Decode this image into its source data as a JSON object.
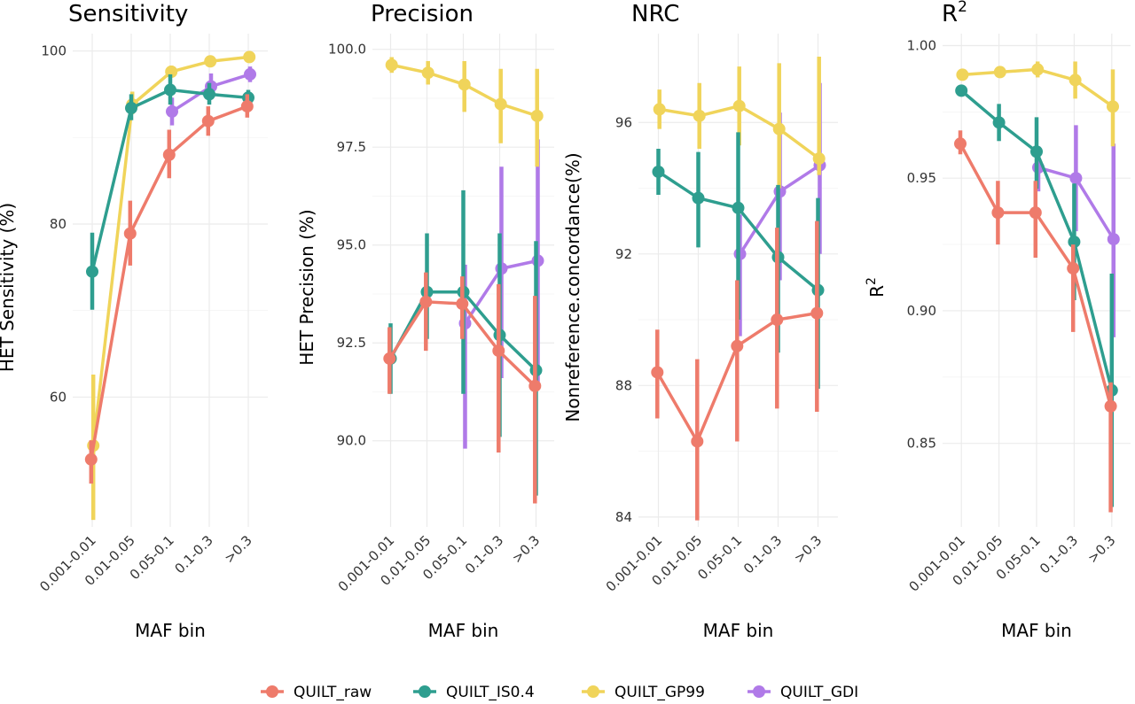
{
  "chart_data": [
    {
      "type": "line",
      "title": "Sensitivity",
      "title_sup": "",
      "ylabel": "HET Sensitivity (%)",
      "ylabel_sup": "",
      "xlabel": "MAF bin",
      "categories": [
        "0.001-0.01",
        "0.01-0.05",
        "0.05-0.1",
        "0.1-0.3",
        ">0.3"
      ],
      "ylim": [
        45,
        102
      ],
      "yticks": [
        60,
        80,
        100
      ],
      "ytick_labels": [
        "60",
        "80",
        "100"
      ],
      "series": [
        {
          "name": "QUILT_raw",
          "values": [
            52.8,
            78.9,
            88.0,
            91.9,
            93.6
          ],
          "lo": [
            50.0,
            75.2,
            85.3,
            90.2,
            92.3
          ],
          "hi": [
            55.0,
            82.7,
            90.9,
            93.6,
            95.0
          ]
        },
        {
          "name": "QUILT_IS0.4",
          "values": [
            74.5,
            93.4,
            95.5,
            95.0,
            94.6
          ],
          "lo": [
            70.1,
            92.0,
            93.8,
            93.8,
            93.7
          ],
          "hi": [
            79.0,
            95.0,
            97.3,
            96.3,
            95.5
          ]
        },
        {
          "name": "QUILT_GP99",
          "values": [
            54.4,
            93.8,
            97.6,
            98.8,
            99.3
          ],
          "lo": [
            45.8,
            92.7,
            97.0,
            98.2,
            98.7
          ],
          "hi": [
            62.6,
            95.3,
            98.3,
            99.4,
            99.8
          ]
        },
        {
          "name": "QUILT_GDI",
          "values": [
            null,
            null,
            93.0,
            95.9,
            97.3
          ],
          "lo": [
            null,
            null,
            91.4,
            94.6,
            96.4
          ],
          "hi": [
            null,
            null,
            94.6,
            97.4,
            98.2
          ]
        }
      ]
    },
    {
      "type": "line",
      "title": "Precision",
      "title_sup": "",
      "ylabel": "HET Precision (%)",
      "ylabel_sup": "",
      "xlabel": "MAF bin",
      "categories": [
        "0.001-0.01",
        "0.01-0.05",
        "0.05-0.1",
        "0.1-0.3",
        ">0.3"
      ],
      "ylim": [
        87.8,
        100.4
      ],
      "yticks": [
        90.0,
        92.5,
        95.0,
        97.5,
        100.0
      ],
      "ytick_labels": [
        "90.0",
        "92.5",
        "95.0",
        "97.5",
        "100.0"
      ],
      "series": [
        {
          "name": "QUILT_raw",
          "values": [
            92.1,
            93.55,
            93.5,
            92.3,
            91.4
          ],
          "lo": [
            91.2,
            92.3,
            92.6,
            89.7,
            88.4
          ],
          "hi": [
            92.9,
            94.3,
            94.2,
            94.0,
            93.7
          ]
        },
        {
          "name": "QUILT_IS0.4",
          "values": [
            92.1,
            93.8,
            93.8,
            92.7,
            91.8
          ],
          "lo": [
            91.2,
            92.6,
            91.2,
            90.1,
            88.6
          ],
          "hi": [
            93.0,
            95.3,
            96.4,
            95.3,
            95.1
          ]
        },
        {
          "name": "QUILT_GP99",
          "values": [
            99.6,
            99.4,
            99.1,
            98.6,
            98.3
          ],
          "lo": [
            99.4,
            99.1,
            98.4,
            97.6,
            97.0
          ],
          "hi": [
            99.8,
            99.7,
            99.7,
            99.5,
            99.5
          ]
        },
        {
          "name": "QUILT_GDI",
          "values": [
            null,
            null,
            93.0,
            94.4,
            94.6
          ],
          "lo": [
            null,
            null,
            89.8,
            91.6,
            91.5
          ],
          "hi": [
            null,
            null,
            94.5,
            97.0,
            97.7
          ]
        }
      ]
    },
    {
      "type": "line",
      "title": "NRC",
      "title_sup": "",
      "ylabel": "Nonreference.concordance(%)",
      "ylabel_sup": "",
      "xlabel": "MAF bin",
      "categories": [
        "0.001-0.01",
        "0.01-0.05",
        "0.05-0.1",
        "0.1-0.3",
        ">0.3"
      ],
      "ylim": [
        83.7,
        98.7
      ],
      "yticks": [
        84,
        88,
        92,
        96
      ],
      "ytick_labels": [
        "84",
        "88",
        "92",
        "96"
      ],
      "series": [
        {
          "name": "QUILT_raw",
          "values": [
            88.4,
            86.3,
            89.2,
            90.0,
            90.2
          ],
          "lo": [
            87.0,
            83.9,
            86.3,
            87.3,
            87.2
          ],
          "hi": [
            89.7,
            88.8,
            91.2,
            92.8,
            93.0
          ]
        },
        {
          "name": "QUILT_IS0.4",
          "values": [
            94.5,
            93.7,
            93.4,
            91.9,
            90.9
          ],
          "lo": [
            93.8,
            92.2,
            90.0,
            89.0,
            87.9
          ],
          "hi": [
            95.2,
            95.1,
            95.7,
            94.1,
            93.7
          ]
        },
        {
          "name": "QUILT_GP99",
          "values": [
            96.4,
            96.2,
            96.5,
            95.8,
            94.9
          ],
          "lo": [
            95.8,
            95.2,
            95.3,
            94.0,
            94.4
          ],
          "hi": [
            97.0,
            97.2,
            97.7,
            97.8,
            98.0
          ]
        },
        {
          "name": "QUILT_GDI",
          "values": [
            null,
            null,
            92.0,
            93.9,
            94.7
          ],
          "lo": [
            null,
            null,
            89.5,
            91.2,
            92.0
          ],
          "hi": [
            null,
            null,
            93.2,
            96.3,
            97.2
          ]
        }
      ]
    },
    {
      "type": "line",
      "title": "R",
      "title_sup": "2",
      "ylabel": "R",
      "ylabel_sup": "2",
      "xlabel": "MAF bin",
      "categories": [
        "0.001-0.01",
        "0.01-0.05",
        "0.05-0.1",
        "0.1-0.3",
        ">0.3"
      ],
      "ylim": [
        0.8185,
        1.0045
      ],
      "yticks": [
        0.85,
        0.9,
        0.95,
        1.0
      ],
      "ytick_labels": [
        "0.85",
        "0.90",
        "0.95",
        "1.00"
      ],
      "series": [
        {
          "name": "QUILT_raw",
          "values": [
            0.963,
            0.937,
            0.937,
            0.916,
            0.864
          ],
          "lo": [
            0.959,
            0.925,
            0.92,
            0.892,
            0.824
          ],
          "hi": [
            0.968,
            0.949,
            0.949,
            0.925,
            0.873
          ]
        },
        {
          "name": "QUILT_IS0.4",
          "values": [
            0.983,
            0.971,
            0.96,
            0.926,
            0.87
          ],
          "lo": [
            0.981,
            0.964,
            0.946,
            0.904,
            0.826
          ],
          "hi": [
            0.985,
            0.978,
            0.973,
            0.948,
            0.914
          ]
        },
        {
          "name": "QUILT_GP99",
          "values": [
            0.989,
            0.99,
            0.991,
            0.987,
            0.977
          ],
          "lo": [
            0.987,
            0.988,
            0.988,
            0.98,
            0.962
          ],
          "hi": [
            0.991,
            0.992,
            0.994,
            0.994,
            0.991
          ]
        },
        {
          "name": "QUILT_GDI",
          "values": [
            null,
            null,
            0.954,
            0.95,
            0.927
          ],
          "lo": [
            null,
            null,
            0.945,
            0.93,
            0.89
          ],
          "hi": [
            null,
            null,
            0.962,
            0.97,
            0.963
          ]
        }
      ]
    }
  ],
  "legend": {
    "placement": "bottom",
    "items": [
      {
        "label": "QUILT_raw",
        "color": "#EE7B6B"
      },
      {
        "label": "QUILT_IS0.4",
        "color": "#2E9E8F"
      },
      {
        "label": "QUILT_GP99",
        "color": "#F0D45A"
      },
      {
        "label": "QUILT_GDI",
        "color": "#B07AE8"
      }
    ]
  },
  "colors": {
    "QUILT_raw": "#EE7B6B",
    "QUILT_IS0.4": "#2E9E8F",
    "QUILT_GP99": "#F0D45A",
    "QUILT_GDI": "#B07AE8",
    "grid": "#EBEBEB"
  }
}
